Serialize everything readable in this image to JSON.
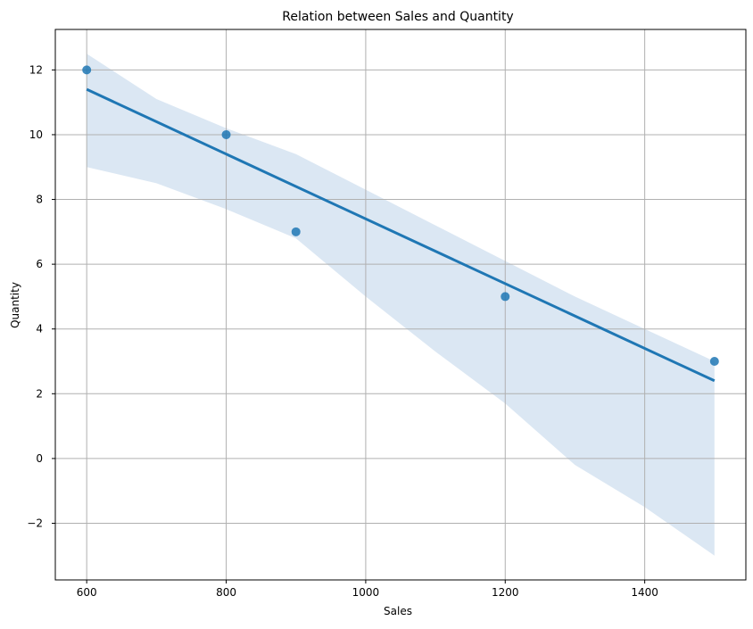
{
  "chart_data": {
    "type": "scatter",
    "title": "Relation between Sales and Quantity",
    "xlabel": "Sales",
    "ylabel": "Quantity",
    "xlim": [
      555,
      1545
    ],
    "ylim": [
      -3.75,
      13.25
    ],
    "xticks": [
      600,
      800,
      1000,
      1200,
      1400
    ],
    "yticks": [
      -2,
      0,
      2,
      4,
      6,
      8,
      10,
      12
    ],
    "ytick_labels": [
      "−2",
      "0",
      "2",
      "4",
      "6",
      "8",
      "10",
      "12"
    ],
    "grid": true,
    "points": [
      {
        "x": 600,
        "y": 12
      },
      {
        "x": 800,
        "y": 10
      },
      {
        "x": 900,
        "y": 7
      },
      {
        "x": 1200,
        "y": 5
      },
      {
        "x": 1500,
        "y": 3
      }
    ],
    "regression_line": [
      {
        "x": 600,
        "y": 11.4
      },
      {
        "x": 1500,
        "y": 2.4
      }
    ],
    "confidence_band": {
      "upper": [
        {
          "x": 600,
          "y": 12.5
        },
        {
          "x": 700,
          "y": 11.1
        },
        {
          "x": 800,
          "y": 10.2
        },
        {
          "x": 900,
          "y": 9.4
        },
        {
          "x": 1000,
          "y": 8.3
        },
        {
          "x": 1100,
          "y": 7.2
        },
        {
          "x": 1200,
          "y": 6.1
        },
        {
          "x": 1300,
          "y": 5.0
        },
        {
          "x": 1400,
          "y": 4.0
        },
        {
          "x": 1500,
          "y": 3.0
        }
      ],
      "lower": [
        {
          "x": 600,
          "y": 9.0
        },
        {
          "x": 700,
          "y": 8.5
        },
        {
          "x": 800,
          "y": 7.7
        },
        {
          "x": 900,
          "y": 6.8
        },
        {
          "x": 1000,
          "y": 5.0
        },
        {
          "x": 1100,
          "y": 3.3
        },
        {
          "x": 1200,
          "y": 1.7
        },
        {
          "x": 1300,
          "y": -0.2
        },
        {
          "x": 1400,
          "y": -1.5
        },
        {
          "x": 1500,
          "y": -3.0
        }
      ]
    },
    "colors": {
      "point": "#1f77b4",
      "line": "#1f77b4",
      "band": "#dbe7f3",
      "grid": "#b0b0b0",
      "axis": "#000000"
    }
  }
}
